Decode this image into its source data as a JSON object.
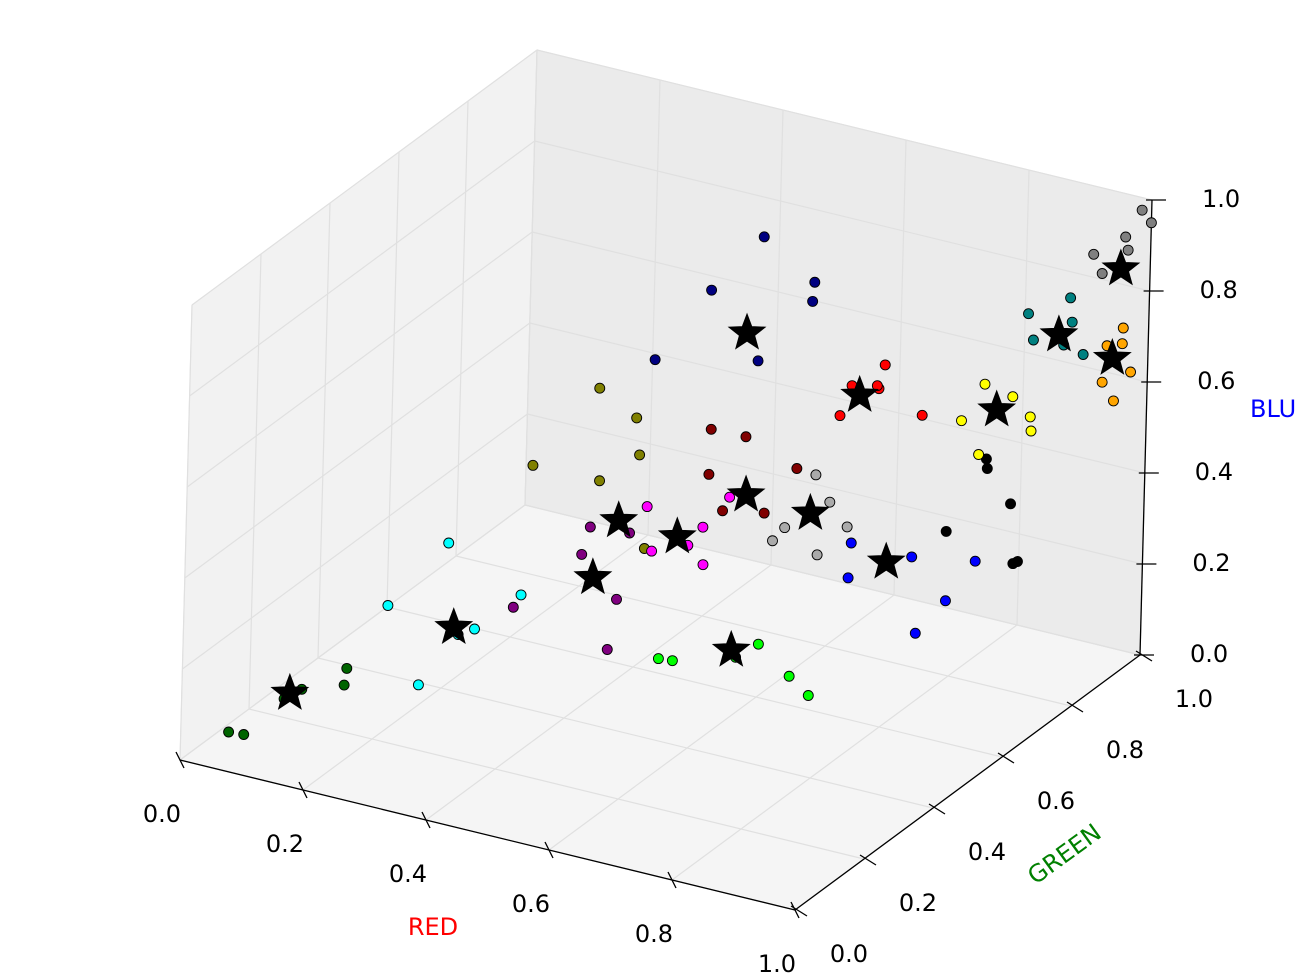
{
  "chart_data": {
    "type": "scatter3d",
    "xlabel": "RED",
    "ylabel": "GREEN",
    "zlabel": "BLU",
    "xlabel_color": "#ff0000",
    "ylabel_color": "#008000",
    "zlabel_color": "#0000ff",
    "xlim": [
      0,
      1
    ],
    "ylim": [
      0,
      1
    ],
    "zlim": [
      0,
      1
    ],
    "xticks": [
      {
        "value": 0,
        "label": "0.0"
      },
      {
        "value": 0.2,
        "label": "0.2"
      },
      {
        "value": 0.4,
        "label": "0.4"
      },
      {
        "value": 0.6,
        "label": "0.6"
      },
      {
        "value": 0.8,
        "label": "0.8"
      },
      {
        "value": 1,
        "label": "1.0"
      }
    ],
    "yticks": [
      {
        "value": 0,
        "label": "0.0"
      },
      {
        "value": 0.2,
        "label": "0.2"
      },
      {
        "value": 0.4,
        "label": "0.4"
      },
      {
        "value": 0.6,
        "label": "0.6"
      },
      {
        "value": 0.8,
        "label": "0.8"
      },
      {
        "value": 1,
        "label": "1.0"
      }
    ],
    "zticks": [
      {
        "value": 0,
        "label": "0.0"
      },
      {
        "value": 0.2,
        "label": "0.2"
      },
      {
        "value": 0.4,
        "label": "0.4"
      },
      {
        "value": 0.6,
        "label": "0.6"
      },
      {
        "value": 0.8,
        "label": "0.8"
      },
      {
        "value": 1,
        "label": "1.0"
      }
    ],
    "grid": true,
    "series": [
      {
        "color": "#006400",
        "x": [
          0.05,
          0.1,
          0.15,
          0.18,
          0.08,
          0.2
        ],
        "y": [
          0.05,
          0.12,
          0.08,
          0.15,
          0.04,
          0.12
        ],
        "z": [
          0.05,
          0.1,
          0.16,
          0.14,
          0.06,
          0.2
        ]
      },
      {
        "color": "#00ffff",
        "x": [
          0.22,
          0.28,
          0.35,
          0.3,
          0.38,
          0.25
        ],
        "y": [
          0.2,
          0.3,
          0.22,
          0.15,
          0.3,
          0.32
        ],
        "z": [
          0.3,
          0.2,
          0.28,
          0.18,
          0.32,
          0.38
        ]
      },
      {
        "color": "#800080",
        "x": [
          0.45,
          0.52,
          0.6,
          0.58,
          0.5,
          0.62
        ],
        "y": [
          0.15,
          0.22,
          0.18,
          0.25,
          0.28,
          0.12
        ],
        "z": [
          0.4,
          0.5,
          0.45,
          0.55,
          0.52,
          0.38
        ]
      },
      {
        "color": "#808000",
        "x": [
          0.35,
          0.42,
          0.5,
          0.45,
          0.55,
          0.4
        ],
        "y": [
          0.38,
          0.45,
          0.42,
          0.5,
          0.35,
          0.48
        ],
        "z": [
          0.55,
          0.5,
          0.6,
          0.62,
          0.45,
          0.68
        ]
      },
      {
        "color": "#ff00ff",
        "x": [
          0.6,
          0.66,
          0.62,
          0.7,
          0.58,
          0.68
        ],
        "y": [
          0.28,
          0.32,
          0.35,
          0.25,
          0.3,
          0.36
        ],
        "z": [
          0.5,
          0.55,
          0.48,
          0.52,
          0.58,
          0.6
        ]
      },
      {
        "color": "#00ff00",
        "x": [
          0.55,
          0.62,
          0.7,
          0.75,
          0.6,
          0.68
        ],
        "y": [
          0.4,
          0.5,
          0.42,
          0.48,
          0.35,
          0.55
        ],
        "z": [
          0.18,
          0.15,
          0.25,
          0.12,
          0.22,
          0.1
        ]
      },
      {
        "color": "#800000",
        "x": [
          0.58,
          0.6,
          0.66,
          0.7,
          0.62,
          0.56
        ],
        "y": [
          0.48,
          0.55,
          0.5,
          0.52,
          0.45,
          0.52
        ],
        "z": [
          0.55,
          0.6,
          0.48,
          0.58,
          0.5,
          0.62
        ]
      },
      {
        "color": "#aaaaaa",
        "x": [
          0.65,
          0.7,
          0.72,
          0.66,
          0.74,
          0.62
        ],
        "y": [
          0.58,
          0.62,
          0.55,
          0.65,
          0.6,
          0.6
        ],
        "z": [
          0.4,
          0.45,
          0.38,
          0.48,
          0.42,
          0.35
        ]
      },
      {
        "color": "#0000ff",
        "x": [
          0.7,
          0.78,
          0.82,
          0.72,
          0.8,
          0.85
        ],
        "y": [
          0.68,
          0.72,
          0.75,
          0.65,
          0.7,
          0.78
        ],
        "z": [
          0.25,
          0.3,
          0.2,
          0.35,
          0.15,
          0.28
        ]
      },
      {
        "color": "#000080",
        "x": [
          0.45,
          0.5,
          0.6,
          0.65,
          0.55,
          0.62
        ],
        "y": [
          0.55,
          0.62,
          0.58,
          0.65,
          0.68,
          0.7
        ],
        "z": [
          0.72,
          0.85,
          0.75,
          0.9,
          0.95,
          0.82
        ]
      },
      {
        "color": "#ff0000",
        "x": [
          0.68,
          0.72,
          0.75,
          0.66,
          0.74,
          0.78
        ],
        "y": [
          0.68,
          0.72,
          0.66,
          0.75,
          0.7,
          0.74
        ],
        "z": [
          0.6,
          0.65,
          0.7,
          0.62,
          0.72,
          0.6
        ]
      },
      {
        "color": "#000000",
        "x": [
          0.78,
          0.85,
          0.88,
          0.8,
          0.9,
          0.82
        ],
        "y": [
          0.82,
          0.88,
          0.85,
          0.9,
          0.8,
          0.86
        ],
        "z": [
          0.3,
          0.35,
          0.25,
          0.4,
          0.28,
          0.45
        ]
      },
      {
        "color": "#ffff00",
        "x": [
          0.8,
          0.86,
          0.88,
          0.82,
          0.9,
          0.84
        ],
        "y": [
          0.82,
          0.86,
          0.88,
          0.85,
          0.84,
          0.8
        ],
        "z": [
          0.55,
          0.6,
          0.52,
          0.62,
          0.58,
          0.5
        ]
      },
      {
        "color": "#008080",
        "x": [
          0.88,
          0.92,
          0.95,
          0.9,
          0.86,
          0.94
        ],
        "y": [
          0.88,
          0.92,
          0.9,
          0.95,
          0.9,
          0.86
        ],
        "z": [
          0.72,
          0.75,
          0.7,
          0.78,
          0.76,
          0.74
        ]
      },
      {
        "color": "#ffa500",
        "x": [
          0.96,
          0.98,
          1.0,
          0.97,
          0.99,
          0.95
        ],
        "y": [
          0.94,
          0.96,
          0.95,
          0.98,
          0.92,
          0.97
        ],
        "z": [
          0.62,
          0.7,
          0.65,
          0.72,
          0.6,
          0.68
        ]
      },
      {
        "color": "#808080",
        "x": [
          0.95,
          0.98,
          1.0,
          0.97,
          0.93,
          0.99
        ],
        "y": [
          0.95,
          0.97,
          1.0,
          0.98,
          0.96,
          0.99
        ],
        "z": [
          0.85,
          0.9,
          0.95,
          0.92,
          0.88,
          0.98
        ]
      },
      {
        "color": "#000000",
        "marker": "star",
        "x": [
          0.12,
          0.3,
          0.55,
          0.48,
          0.63,
          0.64,
          0.63,
          0.68,
          0.75,
          0.57,
          0.7,
          0.84,
          0.91,
          0.97,
          0.98
        ],
        "y": [
          0.1,
          0.25,
          0.2,
          0.4,
          0.3,
          0.45,
          0.5,
          0.6,
          0.7,
          0.6,
          0.7,
          0.85,
          0.9,
          0.95,
          0.95
        ],
        "z": [
          0.13,
          0.25,
          0.47,
          0.46,
          0.53,
          0.2,
          0.51,
          0.43,
          0.29,
          0.79,
          0.64,
          0.57,
          0.73,
          0.67,
          0.87
        ]
      }
    ]
  }
}
